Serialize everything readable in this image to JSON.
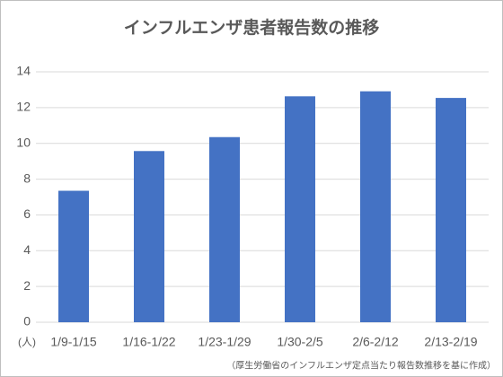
{
  "chart_data": {
    "type": "bar",
    "title": "インフルエンザ患者報告数の推移",
    "categories": [
      "1/9-1/15",
      "1/16-1/22",
      "1/23-1/29",
      "1/30-2/5",
      "2/6-2/12",
      "2/13-2/19"
    ],
    "values": [
      7.35,
      9.57,
      10.35,
      12.63,
      12.91,
      12.54
    ],
    "color": "#4472c4",
    "ylim": [
      0,
      14
    ],
    "yticks": [
      0,
      2,
      4,
      6,
      8,
      10,
      12,
      14
    ],
    "grid": true,
    "y_unit": "(人)",
    "note": "（厚生労働省のインフルエンザ定点当たり報告数推移を基に作成）"
  }
}
